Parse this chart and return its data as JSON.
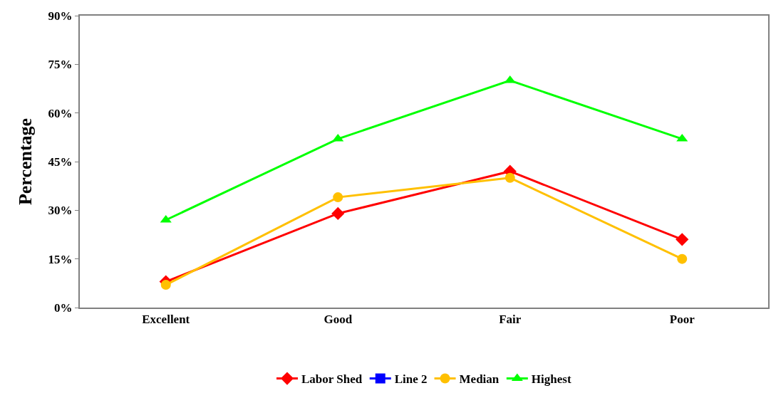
{
  "chart_data": {
    "type": "line",
    "ylabel": "Percentage",
    "categories": [
      "Excellent",
      "Good",
      "Fair",
      "Poor"
    ],
    "series": [
      {
        "name": "Labor Shed",
        "color": "#ff0000",
        "marker": "diamond",
        "values": [
          8,
          29,
          42,
          21
        ]
      },
      {
        "name": "Line 2",
        "color": "#0000ff",
        "marker": "square",
        "values": [
          null,
          null,
          null,
          null
        ]
      },
      {
        "name": "Median",
        "color": "#ffc000",
        "marker": "circle",
        "values": [
          7,
          34,
          40,
          15
        ]
      },
      {
        "name": "Highest",
        "color": "#00ff00",
        "marker": "triangle",
        "values": [
          27,
          52,
          70,
          52
        ]
      }
    ],
    "ylim": [
      0,
      90
    ],
    "yticks": [
      {
        "value": 0,
        "label": "0%"
      },
      {
        "value": 15,
        "label": "15%"
      },
      {
        "value": 30,
        "label": "30%"
      },
      {
        "value": 45,
        "label": "45%"
      },
      {
        "value": 60,
        "label": "60%"
      },
      {
        "value": 75,
        "label": "75%"
      },
      {
        "value": 90,
        "label": "90%"
      }
    ],
    "legend": "bottom",
    "line_style": "solid"
  }
}
